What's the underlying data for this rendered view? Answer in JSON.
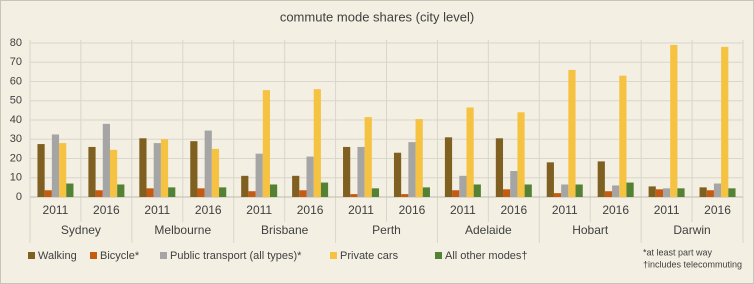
{
  "chart_data": {
    "type": "bar",
    "title": "commute mode shares (city level)",
    "categories": [
      "2011",
      "2016",
      "2011",
      "2016",
      "2011",
      "2016",
      "2011",
      "2016",
      "2011",
      "2016",
      "2011",
      "2016",
      "2011",
      "2016"
    ],
    "groups": [
      "Sydney",
      "Melbourne",
      "Brisbane",
      "Perth",
      "Adelaide",
      "Hobart",
      "Darwin"
    ],
    "series": [
      {
        "name": "Walking",
        "color": "#7f6021",
        "values": [
          27.5,
          26,
          30.5,
          29,
          11,
          11,
          26,
          23,
          31,
          30.5,
          18,
          18.5,
          5.5,
          5
        ]
      },
      {
        "name": "Bicycle*",
        "color": "#c55a11",
        "values": [
          3.5,
          3.5,
          4.5,
          4.5,
          3,
          3.5,
          1.5,
          1.5,
          3.5,
          4,
          2,
          3,
          4,
          3.5
        ]
      },
      {
        "name": "Public transport (all types)*",
        "color": "#a5a5a5",
        "values": [
          32.5,
          38,
          28,
          34.5,
          22.5,
          21,
          26,
          28.5,
          11,
          13.5,
          6.5,
          6,
          4.5,
          7
        ]
      },
      {
        "name": "Private cars",
        "color": "#f5c242",
        "values": [
          28,
          24.5,
          30,
          25,
          55.5,
          56,
          41.5,
          40.5,
          46.5,
          44,
          66,
          63,
          79,
          78
        ]
      },
      {
        "name": "All other modes†",
        "color": "#548235",
        "values": [
          7,
          6.5,
          5,
          5,
          6.5,
          7.5,
          4.5,
          5,
          6.5,
          6.5,
          6.5,
          7.5,
          4.5,
          4.5
        ]
      }
    ],
    "ylim": [
      0,
      80
    ],
    "yticks": [
      0,
      10,
      20,
      30,
      40,
      50,
      60,
      70,
      80
    ],
    "grid": true,
    "notes": [
      "*at least part way",
      "†includes telecommuting"
    ]
  }
}
